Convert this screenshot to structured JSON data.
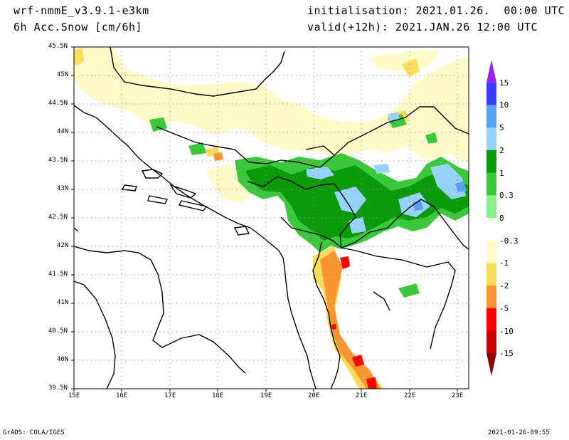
{
  "header": {
    "model": "wrf-nmmE_v3.9.1-e3km",
    "field": "6h Acc.Snow [cm/6h]",
    "init": "initialisation: 2021.01.26.  00:00 UTC",
    "valid": "valid(+12h): 2021.JAN.26 12:00 UTC"
  },
  "map": {
    "lon_ticks": [
      "15E",
      "16E",
      "17E",
      "18E",
      "19E",
      "20E",
      "21E",
      "22E",
      "23E"
    ],
    "lat_ticks": [
      "45.5N",
      "45N",
      "44.5N",
      "44N",
      "43.5N",
      "43N",
      "42.5N",
      "42N",
      "41.5N",
      "41N",
      "40.5N",
      "40N",
      "39.5N"
    ],
    "lon_range": [
      15,
      23.2
    ],
    "lat_range": [
      39.5,
      45.5
    ],
    "grid": "dotted",
    "coastline_color": "#000000"
  },
  "legend": {
    "labels": [
      "15",
      "10",
      "5",
      "2",
      "1",
      "0.3",
      "0",
      "-0.3",
      "-1",
      "-2",
      "-5",
      "-10",
      "-15"
    ],
    "colors": [
      "#a020f0",
      "#3c3cff",
      "#5aa0f0",
      "#96d2fa",
      "#0a9a0a",
      "#3cc83c",
      "#8cf08c",
      "#ffffff",
      "#fffac8",
      "#fadc5a",
      "#fa9632",
      "#fa0000",
      "#c80000",
      "#8c0000"
    ]
  },
  "footer": {
    "left": "GrADS: COLA/IGES",
    "right": "2021-01-26-09:55"
  }
}
